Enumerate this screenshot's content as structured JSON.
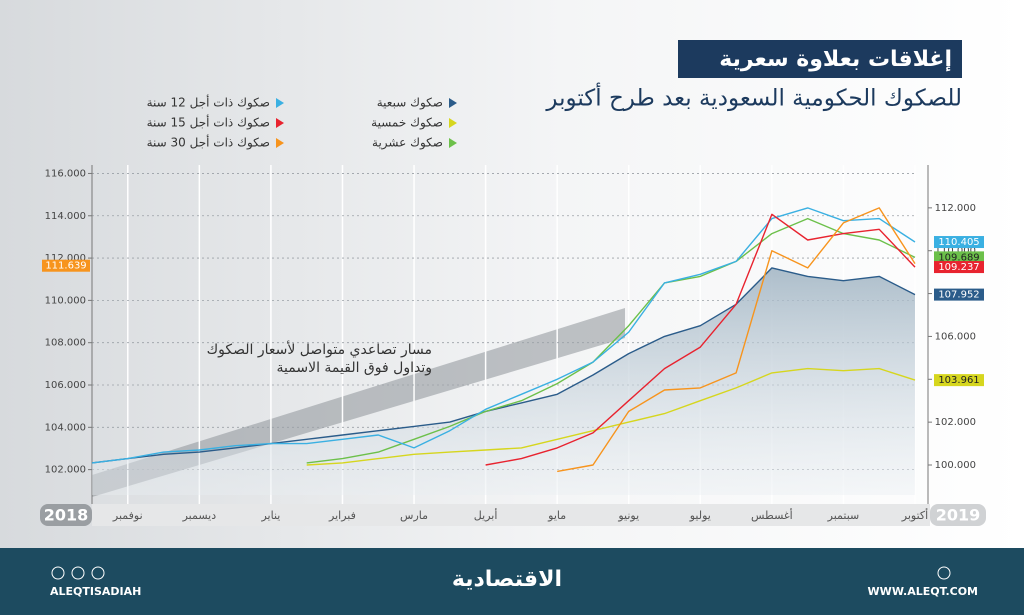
{
  "chart_data": {
    "type": "line",
    "title": "إغلاقات بعلاوة سعرية",
    "subtitle": "للصكوك الحكومية السعودية بعد طرح أكتوبر",
    "annotations": [
      "مسار تصاعدي متواصل لأسعار الصكوك",
      "وتداول فوق القيمة الاسمية"
    ],
    "years": [
      "2018",
      "2019"
    ],
    "categories": [
      null,
      "نوفمبر",
      null,
      "ديسمبر",
      null,
      "يناير",
      null,
      "فبراير",
      null,
      "مارس",
      null,
      "أبريل",
      null,
      "مايو",
      null,
      "يونيو",
      null,
      "يوليو",
      null,
      "أغسطس",
      null,
      "سبتمبر",
      null,
      "أكتوبر"
    ],
    "ylim": [
      100.8,
      116.4
    ],
    "yticks": [
      {
        "value": 102,
        "label": "102.000"
      },
      {
        "value": 104,
        "label": "104.000"
      },
      {
        "value": 106,
        "label": "106.000"
      },
      {
        "value": 108,
        "label": "108.000"
      },
      {
        "value": 110,
        "label": "110.000"
      },
      {
        "value": 112,
        "label": "112.000"
      },
      {
        "value": 114,
        "label": "114.000"
      },
      {
        "value": 116,
        "label": "116.000"
      }
    ],
    "y2lim": [
      98.6,
      114.0
    ],
    "y2ticks": [
      {
        "value": 100,
        "label": "100.000"
      },
      {
        "value": 102,
        "label": "102.000"
      },
      {
        "value": 104,
        "label": "104.000"
      },
      {
        "value": 106,
        "label": "106.000"
      },
      {
        "value": 108,
        "label": "108.000"
      },
      {
        "value": 110,
        "label": "110.000"
      },
      {
        "value": 112,
        "label": "112.000"
      }
    ],
    "y_marker": {
      "value": 111.639,
      "color": "#f7941d"
    },
    "grid": true,
    "series": [
      {
        "name": "صكوك سبعية",
        "color": "#2b5c8a",
        "axis": "y2",
        "area": true,
        "values": [
          100.1,
          100.3,
          100.5,
          100.6,
          100.8,
          101.0,
          101.2,
          101.4,
          101.6,
          101.8,
          102.0,
          102.5,
          102.9,
          103.3,
          104.2,
          105.2,
          106.0,
          106.5,
          107.5,
          109.2,
          108.8,
          108.6,
          108.8,
          107.952
        ]
      },
      {
        "name": "صكوك خمسية",
        "color": "#d6d61e",
        "axis": "y2",
        "values": [
          null,
          null,
          null,
          null,
          null,
          null,
          100.0,
          100.1,
          100.3,
          100.5,
          100.6,
          100.7,
          100.8,
          101.2,
          101.6,
          102.0,
          102.4,
          103.0,
          103.6,
          104.3,
          104.5,
          104.4,
          104.5,
          103.961
        ]
      },
      {
        "name": "صكوك عشرية",
        "color": "#6cc04a",
        "axis": "y2",
        "values": [
          null,
          null,
          null,
          null,
          null,
          null,
          100.1,
          100.3,
          100.6,
          101.2,
          101.8,
          102.5,
          103.0,
          103.8,
          104.8,
          106.5,
          108.5,
          108.8,
          109.5,
          110.8,
          111.5,
          110.8,
          110.5,
          109.689
        ]
      },
      {
        "name": "صكوك ذات أجل 12 سنة",
        "color": "#3ab0e2",
        "axis": "y2",
        "values": [
          100.1,
          100.3,
          100.6,
          100.7,
          100.9,
          101.0,
          101.0,
          101.2,
          101.4,
          100.8,
          101.6,
          102.6,
          103.3,
          104.0,
          104.8,
          106.2,
          108.5,
          108.9,
          109.5,
          111.5,
          112.0,
          111.4,
          111.5,
          110.405
        ]
      },
      {
        "name": "صكوك ذات أجل 15 سنة",
        "color": "#e8232f",
        "axis": "y2",
        "values": [
          null,
          null,
          null,
          null,
          null,
          null,
          null,
          null,
          null,
          null,
          null,
          100.0,
          100.3,
          100.8,
          101.5,
          103.0,
          104.5,
          105.5,
          107.5,
          111.7,
          110.5,
          110.8,
          111.0,
          109.237
        ]
      },
      {
        "name": "صكوك ذات أجل 30 سنة",
        "color": "#f7941d",
        "axis": "y2",
        "end_label": false,
        "values": [
          null,
          null,
          null,
          null,
          null,
          null,
          null,
          null,
          null,
          null,
          null,
          null,
          null,
          99.7,
          100.0,
          102.5,
          103.5,
          103.6,
          104.3,
          110.0,
          109.2,
          111.3,
          112.0,
          109.4
        ]
      }
    ]
  },
  "footer": {
    "handle": "ALEQTISADIAH",
    "logo": "الاقتصادية",
    "url": "WWW.ALEQT.COM"
  }
}
